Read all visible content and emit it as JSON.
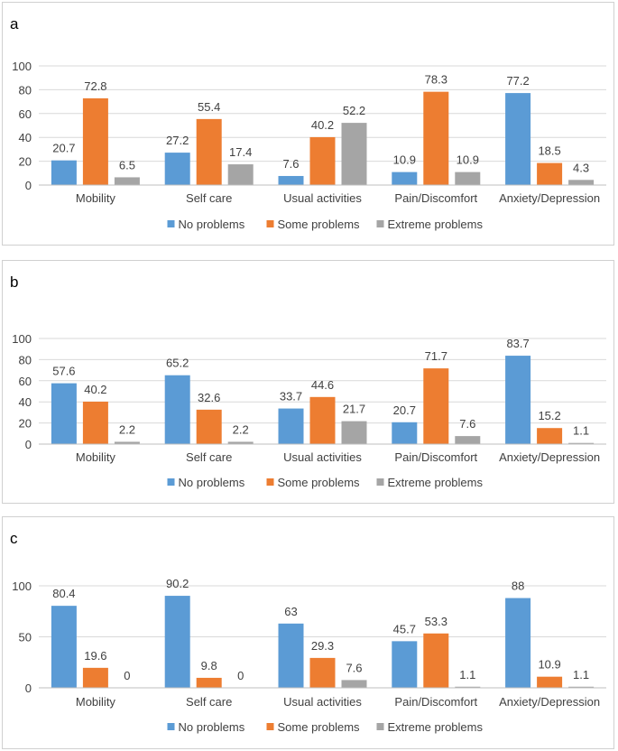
{
  "colors": {
    "no_problems": "#5b9bd5",
    "some_problems": "#ed7d31",
    "extreme_problems": "#a5a5a5",
    "grid": "#d9d9d9",
    "axis": "#bfbfbf",
    "text": "#404040"
  },
  "chart_data": [
    {
      "panel_label": "a",
      "type": "bar",
      "categories": [
        "Mobility",
        "Self care",
        "Usual activities",
        "Pain/Discomfort",
        "Anxiety/Depression"
      ],
      "series": [
        {
          "name": "No problems",
          "color": "#5b9bd5",
          "values": [
            20.7,
            27.2,
            7.6,
            10.9,
            77.2
          ]
        },
        {
          "name": "Some problems",
          "color": "#ed7d31",
          "values": [
            72.8,
            55.4,
            40.2,
            78.3,
            18.5
          ]
        },
        {
          "name": "Extreme problems",
          "color": "#a5a5a5",
          "values": [
            6.5,
            17.4,
            52.2,
            10.9,
            4.3
          ]
        }
      ],
      "ylim": [
        0,
        100
      ],
      "yticks": [
        "0",
        "20",
        "40",
        "60",
        "80",
        "100"
      ],
      "ytick_values": [
        0,
        20,
        40,
        60,
        80,
        100
      ],
      "data_labels": [
        [
          "20.7",
          "27.2",
          "7.6",
          "10.9",
          "77.2"
        ],
        [
          "72.8",
          "55.4",
          "40.2",
          "78.3",
          "18.5"
        ],
        [
          "6.5",
          "17.4",
          "52.2",
          "10.9",
          "4.3"
        ]
      ],
      "legend_position": "bottom",
      "grid": true
    },
    {
      "panel_label": "b",
      "type": "bar",
      "categories": [
        "Mobility",
        "Self care",
        "Usual activities",
        "Pain/Discomfort",
        "Anxiety/Depression"
      ],
      "series": [
        {
          "name": "No problems",
          "color": "#5b9bd5",
          "values": [
            57.6,
            65.2,
            33.7,
            20.7,
            83.7
          ]
        },
        {
          "name": "Some problems",
          "color": "#ed7d31",
          "values": [
            40.2,
            32.6,
            44.6,
            71.7,
            15.2
          ]
        },
        {
          "name": "Extreme problems",
          "color": "#a5a5a5",
          "values": [
            2.2,
            2.2,
            21.7,
            7.6,
            1.1
          ]
        }
      ],
      "ylim": [
        0,
        100
      ],
      "yticks": [
        "0",
        "20",
        "40",
        "60",
        "80",
        "100"
      ],
      "ytick_values": [
        0,
        20,
        40,
        60,
        80,
        100
      ],
      "data_labels": [
        [
          "57.6",
          "65.2",
          "33.7",
          "20.7",
          "83.7"
        ],
        [
          "40.2",
          "32.6",
          "44.6",
          "71.7",
          "15.2"
        ],
        [
          "2.2",
          "2.2",
          "21.7",
          "7.6",
          "1.1"
        ]
      ],
      "legend_position": "bottom",
      "grid": true
    },
    {
      "panel_label": "c",
      "type": "bar",
      "categories": [
        "Mobility",
        "Self care",
        "Usual activities",
        "Pain/Discomfort",
        "Anxiety/Depression"
      ],
      "series": [
        {
          "name": "No problems",
          "color": "#5b9bd5",
          "values": [
            80.4,
            90.2,
            63,
            45.7,
            88
          ]
        },
        {
          "name": "Some problems",
          "color": "#ed7d31",
          "values": [
            19.6,
            9.8,
            29.3,
            53.3,
            10.9
          ]
        },
        {
          "name": "Extreme problems",
          "color": "#a5a5a5",
          "values": [
            0,
            0,
            7.6,
            1.1,
            1.1
          ]
        }
      ],
      "ylim": [
        0,
        100
      ],
      "yticks": [
        "0",
        "50",
        "100"
      ],
      "ytick_values": [
        0,
        50,
        100
      ],
      "data_labels": [
        [
          "80.4",
          "90.2",
          "63",
          "45.7",
          "88"
        ],
        [
          "19.6",
          "9.8",
          "29.3",
          "53.3",
          "10.9"
        ],
        [
          "0",
          "0",
          "7.6",
          "1.1",
          "1.1"
        ]
      ],
      "legend_position": "bottom",
      "grid": true
    }
  ]
}
